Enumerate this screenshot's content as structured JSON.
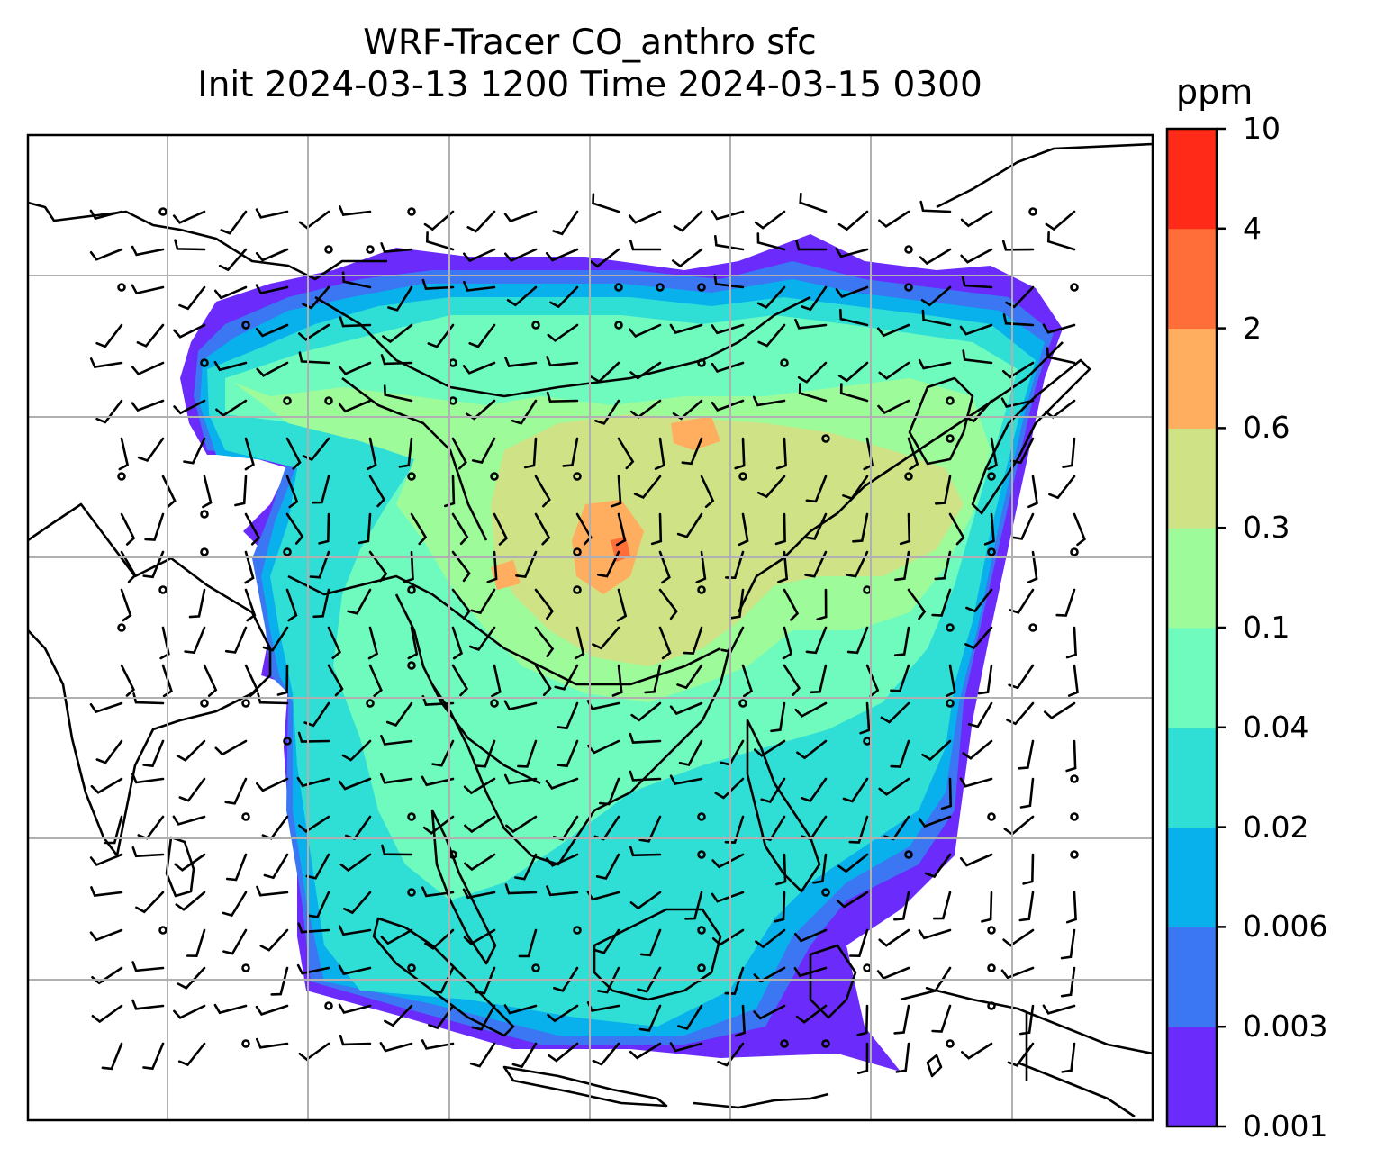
{
  "title": {
    "line1": "WRF-Tracer CO_anthro sfc",
    "line2": "Init 2024-03-13 1200 Time 2024-03-15 0300"
  },
  "colorbar": {
    "unit": "ppm",
    "levels": [
      "0.001",
      "0.003",
      "0.006",
      "0.02",
      "0.04",
      "0.1",
      "0.3",
      "0.6",
      "2",
      "4",
      "10"
    ],
    "colors": [
      "#6a2bfb",
      "#3b76f3",
      "#08b0ec",
      "#2fdfd6",
      "#6ffbbe",
      "#9dfb9a",
      "#cfe286",
      "#ffad5e",
      "#ff6e38",
      "#ff2a17"
    ]
  },
  "map": {
    "gridlines": true,
    "gridline_color": "#b0b0b0",
    "coastline_color": "#000000",
    "wind_barbs": true
  }
}
